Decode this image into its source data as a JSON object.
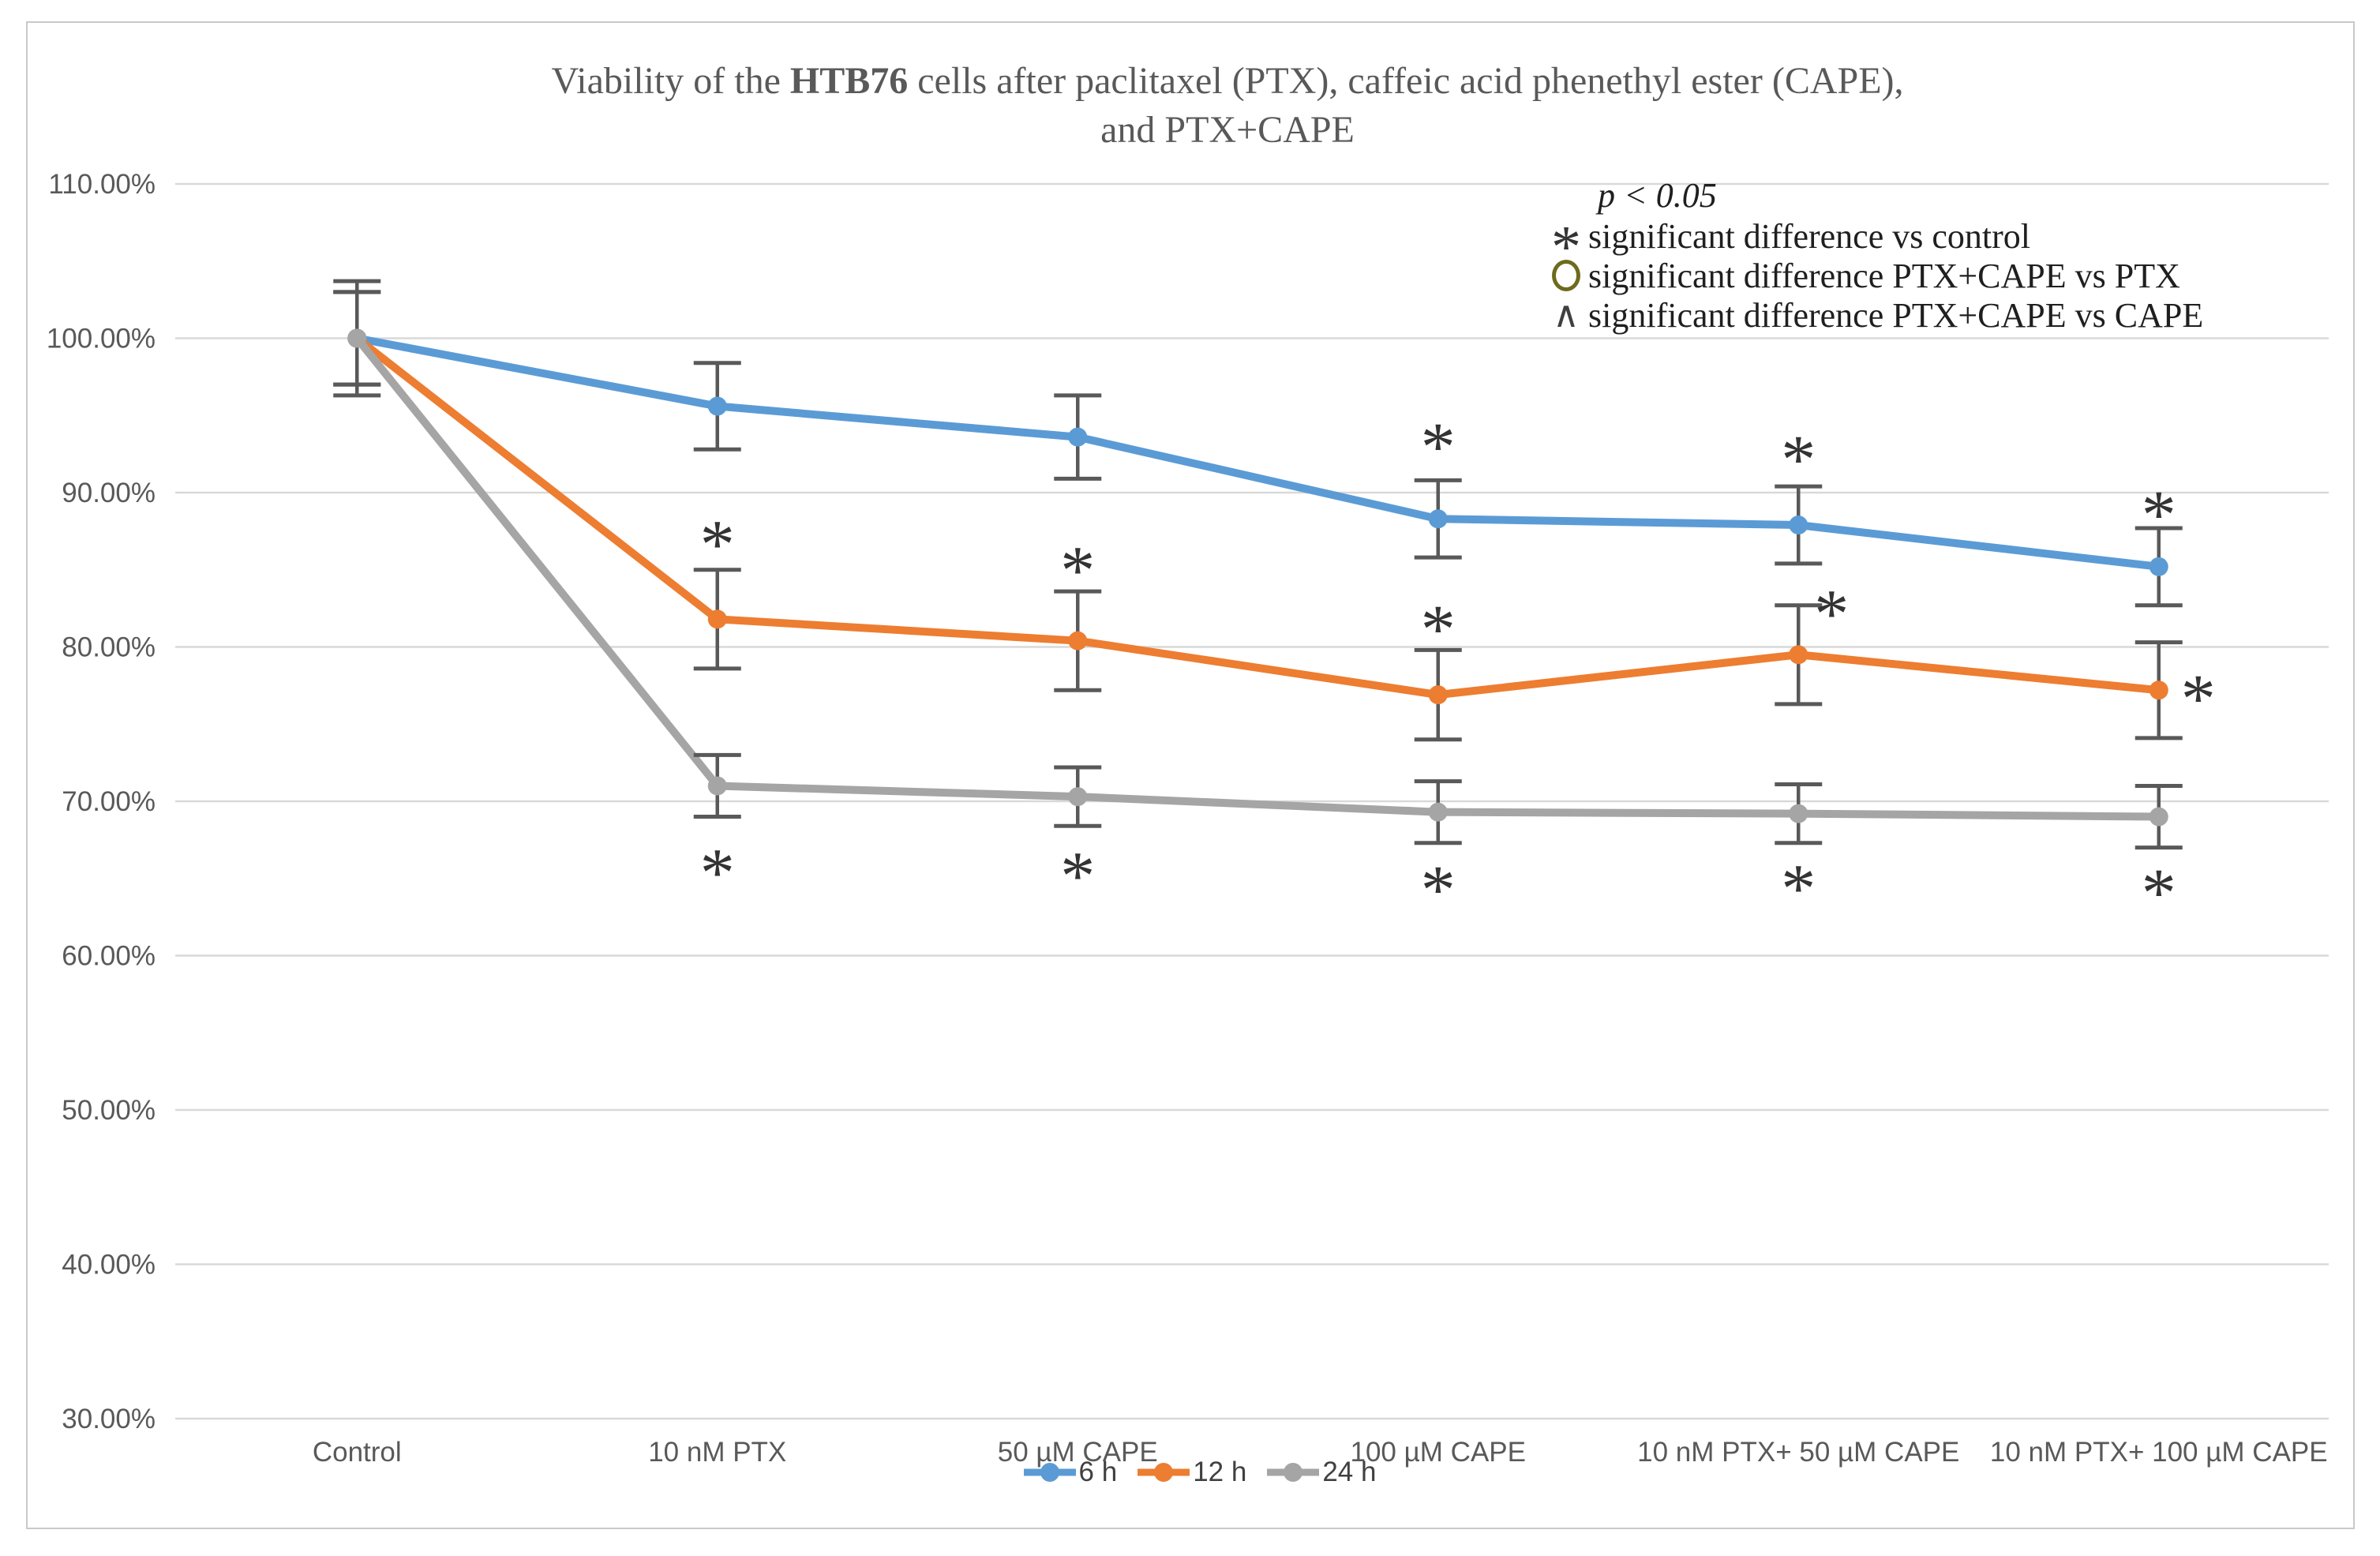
{
  "title": {
    "prefix": "Viability of the ",
    "bold": "HTB76",
    "suffix": " cells after paclitaxel (PTX), caffeic acid phenethyl ester (CAPE),",
    "line2": "and  PTX+CAPE"
  },
  "annotation": {
    "p_label": "p < 0.05",
    "items": [
      {
        "symbol": "*",
        "text": "significant difference vs control",
        "color": "#333333"
      },
      {
        "symbol": "○",
        "text": "significant difference PTX+CAPE vs PTX",
        "color": "#6E6A1E"
      },
      {
        "symbol": "∧",
        "text": "significant difference PTX+CAPE vs CAPE",
        "color": "#404040"
      }
    ]
  },
  "chart_data": {
    "type": "line",
    "title": "Viability of the HTB76 cells after paclitaxel (PTX), caffeic acid phenethyl ester (CAPE), and PTX+CAPE",
    "categories": [
      "Control",
      "10 nM PTX",
      "50 µM CAPE",
      "100 µM CAPE",
      "10 nM PTX+ 50 µM CAPE",
      "10 nM PTX+ 100 µM CAPE"
    ],
    "series": [
      {
        "name": "6 h",
        "color": "#5B9BD5",
        "values": [
          100,
          95.6,
          93.6,
          88.3,
          87.9,
          85.2
        ],
        "err": [
          3.7,
          2.8,
          2.7,
          2.5,
          2.5,
          2.5
        ]
      },
      {
        "name": "12 h",
        "color": "#ED7D31",
        "values": [
          100,
          81.8,
          80.4,
          76.9,
          79.5,
          77.2
        ],
        "err": [
          3.0,
          3.2,
          3.2,
          2.9,
          3.2,
          3.1
        ]
      },
      {
        "name": "24 h",
        "color": "#A5A5A5",
        "values": [
          100,
          71.0,
          70.3,
          69.3,
          69.2,
          69.0
        ],
        "err": [
          3.0,
          2.0,
          1.9,
          2.0,
          1.9,
          2.0
        ]
      }
    ],
    "y_axis": {
      "tick_labels": [
        "110.00%",
        "100.00%",
        "90.00%",
        "80.00%",
        "70.00%",
        "60.00%",
        "50.00%",
        "40.00%",
        "30.00%"
      ],
      "ylim": [
        30,
        110
      ],
      "grid": true
    },
    "legend_position": "bottom",
    "sig_symbol": "*",
    "sig_markers": [
      {
        "series": 0,
        "cat": 3,
        "pct": 93.6,
        "dx": 0
      },
      {
        "series": 0,
        "cat": 4,
        "pct": 92.8,
        "dx": 0
      },
      {
        "series": 0,
        "cat": 5,
        "pct": 89.2,
        "dx": 0
      },
      {
        "series": 1,
        "cat": 1,
        "pct": 87.3,
        "dx": 0
      },
      {
        "series": 1,
        "cat": 2,
        "pct": 85.6,
        "dx": 0
      },
      {
        "series": 1,
        "cat": 3,
        "pct": 81.8,
        "dx": 0
      },
      {
        "series": 1,
        "cat": 4,
        "pct": 82.8,
        "dx": 42
      },
      {
        "series": 1,
        "cat": 5,
        "pct": 77.3,
        "dx": 50
      },
      {
        "series": 2,
        "cat": 1,
        "pct": 66.0,
        "dx": 0
      },
      {
        "series": 2,
        "cat": 2,
        "pct": 65.8,
        "dx": 0
      },
      {
        "series": 2,
        "cat": 3,
        "pct": 64.9,
        "dx": 0
      },
      {
        "series": 2,
        "cat": 4,
        "pct": 65.0,
        "dx": 0
      },
      {
        "series": 2,
        "cat": 5,
        "pct": 64.7,
        "dx": 0
      }
    ],
    "colors": {
      "grid": "#D9D9D9",
      "error_bar": "#595959",
      "asterisk": "#333333",
      "axis_text": "#595959",
      "frame_border": "#C9C9C9"
    }
  }
}
